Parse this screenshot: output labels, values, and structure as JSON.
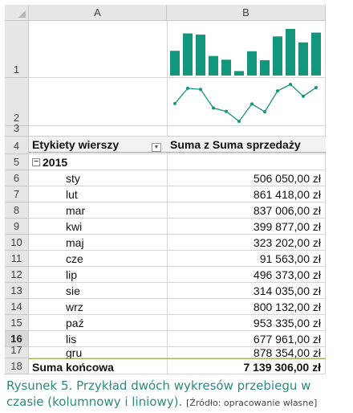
{
  "columns": [
    "A",
    "B"
  ],
  "rows": [
    "1",
    "2",
    "3",
    "4",
    "5",
    "6",
    "7",
    "8",
    "9",
    "10",
    "11",
    "12",
    "13",
    "14",
    "15",
    "16",
    "17",
    "18"
  ],
  "selected_row": "16",
  "pivot": {
    "row_header": "Etykiety wierszy",
    "value_header": "Suma z Suma sprzedaży",
    "filter_icon": "dropdown-filter-icon",
    "year": "2015",
    "collapse_symbol": "−",
    "months": [
      {
        "label": "sty",
        "value": "506 050,00 zł"
      },
      {
        "label": "lut",
        "value": "861 418,00 zł"
      },
      {
        "label": "mar",
        "value": "837 006,00 zł"
      },
      {
        "label": "kwi",
        "value": "399 877,00 zł"
      },
      {
        "label": "maj",
        "value": "323 202,00 zł"
      },
      {
        "label": "cze",
        "value": "91 563,00 zł"
      },
      {
        "label": "lip",
        "value": "496 373,00 zł"
      },
      {
        "label": "sie",
        "value": "314 035,00 zł"
      },
      {
        "label": "wrz",
        "value": "800 132,00 zł"
      },
      {
        "label": "paź",
        "value": "953 335,00 zł"
      },
      {
        "label": "lis",
        "value": "677 961,00 zł"
      },
      {
        "label": "gru",
        "value": "878 354,00 zł"
      }
    ],
    "total_label": "Suma końcowa",
    "total_value": "7 139 306,00 zł"
  },
  "sparklines": {
    "color": "#13967a",
    "values": [
      506050,
      861418,
      837006,
      399877,
      323202,
      91563,
      496373,
      314035,
      800132,
      953335,
      677961,
      878354
    ]
  },
  "caption": {
    "main": "Rysunek 5. Przykład dwóch wykresów przebiegu w czasie (kolumnowy i liniowy).",
    "source": "[Źródło: opracowanie własne]"
  }
}
